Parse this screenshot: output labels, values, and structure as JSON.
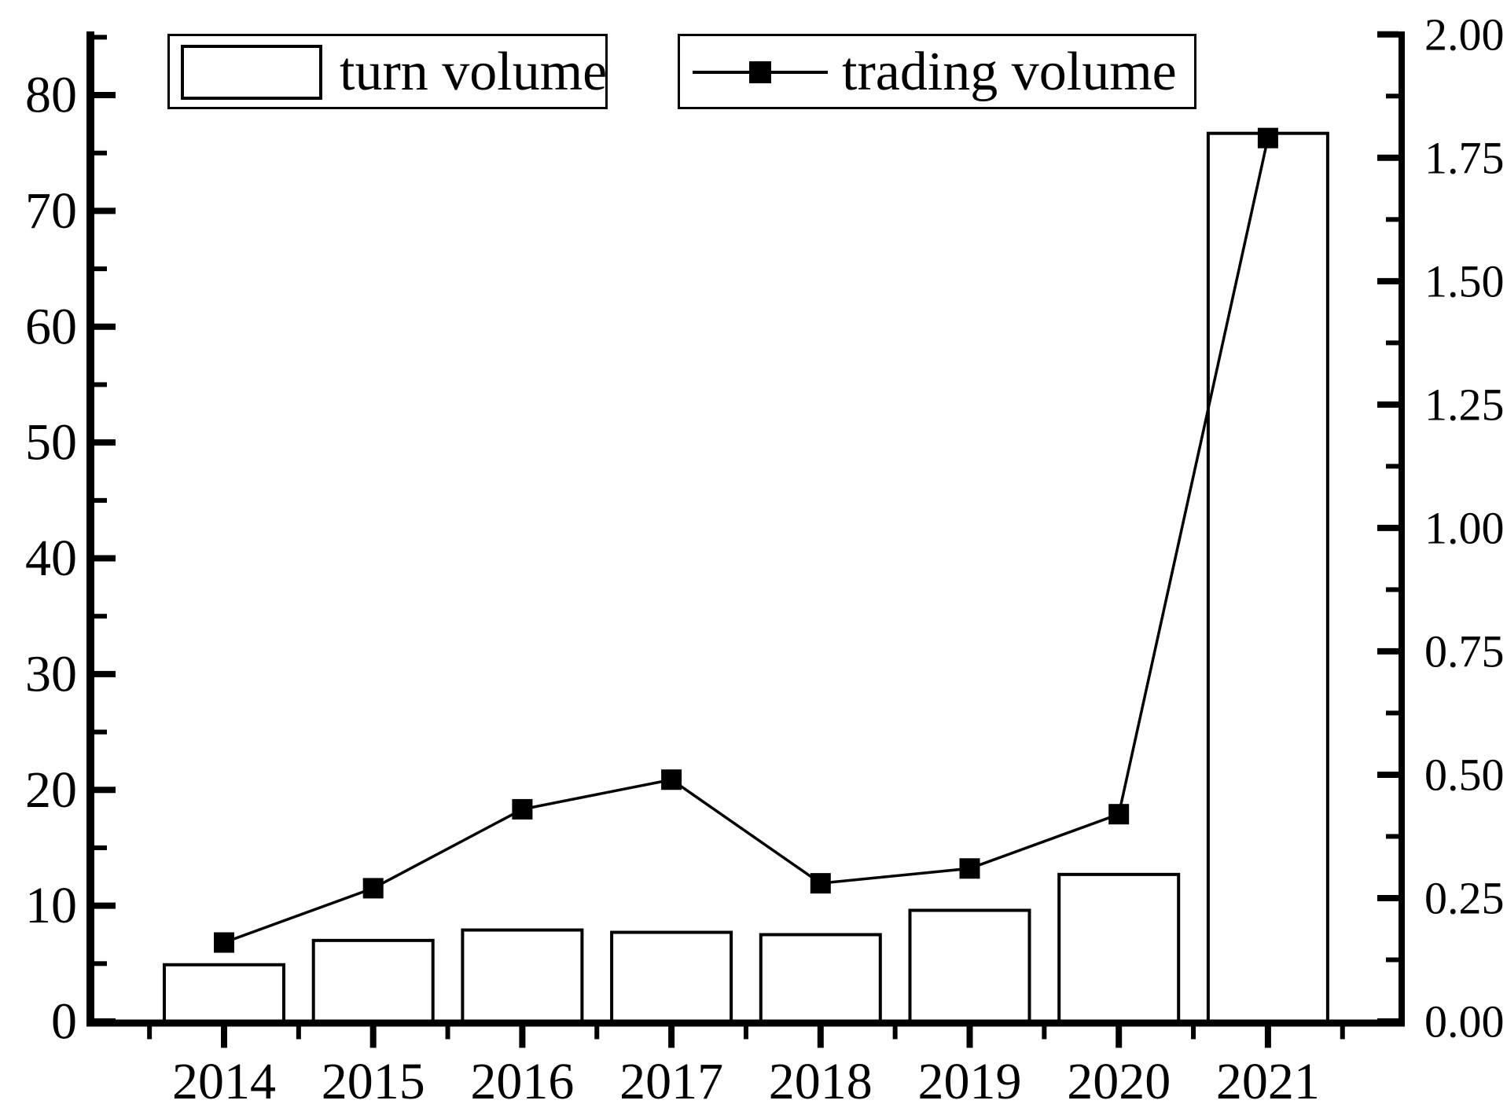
{
  "legend": {
    "items": [
      {
        "label": "turn volume",
        "symbol": "bar-swatch"
      },
      {
        "label": "trading volume",
        "symbol": "line-with-square-marker"
      }
    ]
  },
  "colors": {
    "foreground": "#000000",
    "background": "#ffffff",
    "bar_fill": "#ffffff",
    "bar_border": "#000000",
    "line": "#000000",
    "marker": "#000000"
  },
  "chart_data": {
    "type": "bar+line",
    "title": "",
    "xlabel": "",
    "ylabel_left": "",
    "ylabel_right": "",
    "grid": false,
    "legend_position": "top",
    "categories": [
      "2014",
      "2015",
      "2016",
      "2017",
      "2018",
      "2019",
      "2020",
      "2021"
    ],
    "series": [
      {
        "name": "turn volume",
        "type": "bar",
        "axis": "left",
        "values": [
          4.9,
          7.0,
          7.9,
          7.7,
          7.5,
          9.6,
          12.7,
          76.7
        ]
      },
      {
        "name": "trading volume",
        "type": "line",
        "axis": "right",
        "marker": "square",
        "values": [
          0.16,
          0.27,
          0.43,
          0.49,
          0.28,
          0.31,
          0.42,
          1.79
        ]
      }
    ],
    "axes": {
      "left": {
        "min": 0,
        "max": 85.5,
        "major_step": 10,
        "minor_step": 5,
        "tick_labels": [
          "0",
          "10",
          "20",
          "30",
          "40",
          "50",
          "60",
          "70",
          "80"
        ],
        "tick_direction": "in"
      },
      "right": {
        "min": 0,
        "max": 2.006,
        "major_step": 0.25,
        "minor_step": 0.125,
        "tick_labels": [
          "0.00",
          "0.25",
          "0.50",
          "0.75",
          "1.00",
          "1.25",
          "1.50",
          "1.75",
          "2.00"
        ],
        "tick_direction": "in"
      },
      "x": {
        "tick_labels": [
          "2014",
          "2015",
          "2016",
          "2017",
          "2018",
          "2019",
          "2020",
          "2021"
        ],
        "minor_ticks_between_categories": true,
        "tick_direction": "out"
      }
    }
  }
}
